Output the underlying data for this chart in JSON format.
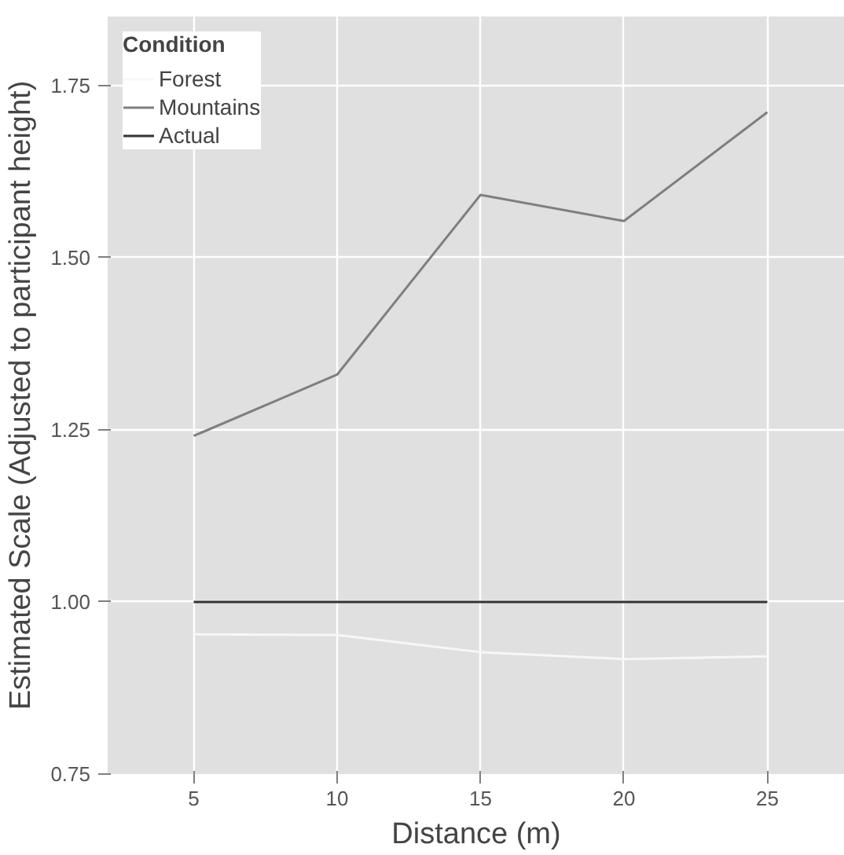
{
  "chart_data": {
    "type": "line",
    "xlabel": "Distance (m)",
    "ylabel": "Estimated Scale (Adjusted to participant height)",
    "legend_title": "Condition",
    "x": [
      5,
      10,
      15,
      20,
      25
    ],
    "series": [
      {
        "name": "Forest",
        "color": "#f7f7f7",
        "values": [
          0.953,
          0.952,
          0.927,
          0.917,
          0.921
        ]
      },
      {
        "name": "Mountains",
        "color": "#7f7f7f",
        "values": [
          1.241,
          1.33,
          1.591,
          1.553,
          1.711
        ]
      },
      {
        "name": "Actual",
        "color": "#333333",
        "values": [
          1.0,
          1.0,
          1.0,
          1.0,
          1.0
        ]
      }
    ],
    "xlim": [
      2,
      27.7
    ],
    "ylim": [
      0.75,
      1.85
    ],
    "xticks": [
      5,
      10,
      15,
      20,
      25
    ],
    "yticks": [
      {
        "value": 0.75,
        "label": "0.75"
      },
      {
        "value": 1.0,
        "label": "1.00"
      },
      {
        "value": 1.25,
        "label": "1.25"
      },
      {
        "value": 1.5,
        "label": "1.50"
      },
      {
        "value": 1.75,
        "label": "1.75"
      }
    ],
    "grid": true,
    "legend": "top left",
    "line_style": "solid"
  }
}
